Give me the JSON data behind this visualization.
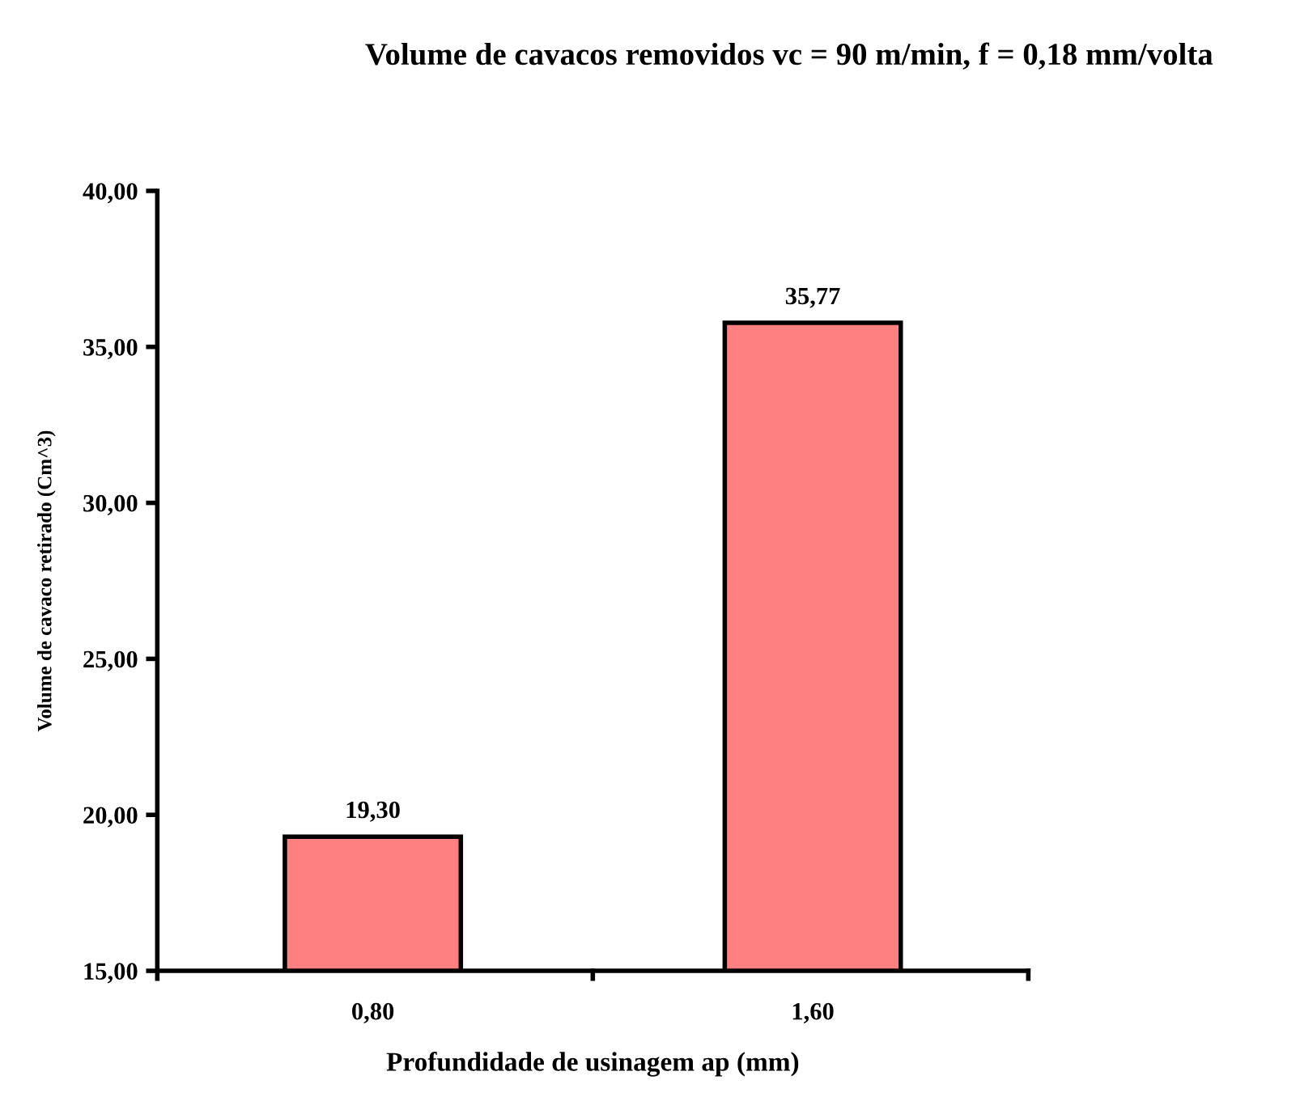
{
  "chart_data": {
    "type": "bar",
    "title": "Volume de cavacos removidos vc = 90 m/min, f = 0,18 mm/volta",
    "xlabel": "Profundidade de usinagem ap (mm)",
    "ylabel": "Volume de cavaco retirado (Cm^3)",
    "categories": [
      "0,80",
      "1,60"
    ],
    "values": [
      19.3,
      35.77
    ],
    "value_labels": [
      "19,30",
      "35,77"
    ],
    "color": "#ff8080",
    "ylim": [
      15,
      40
    ],
    "yticks": [
      {
        "value": 15,
        "label": "15,00"
      },
      {
        "value": 20,
        "label": "20,00"
      },
      {
        "value": 25,
        "label": "25,00"
      },
      {
        "value": 30,
        "label": "30,00"
      },
      {
        "value": 35,
        "label": "35,00"
      },
      {
        "value": 40,
        "label": "40,00"
      }
    ],
    "grid": false,
    "legend": false
  }
}
